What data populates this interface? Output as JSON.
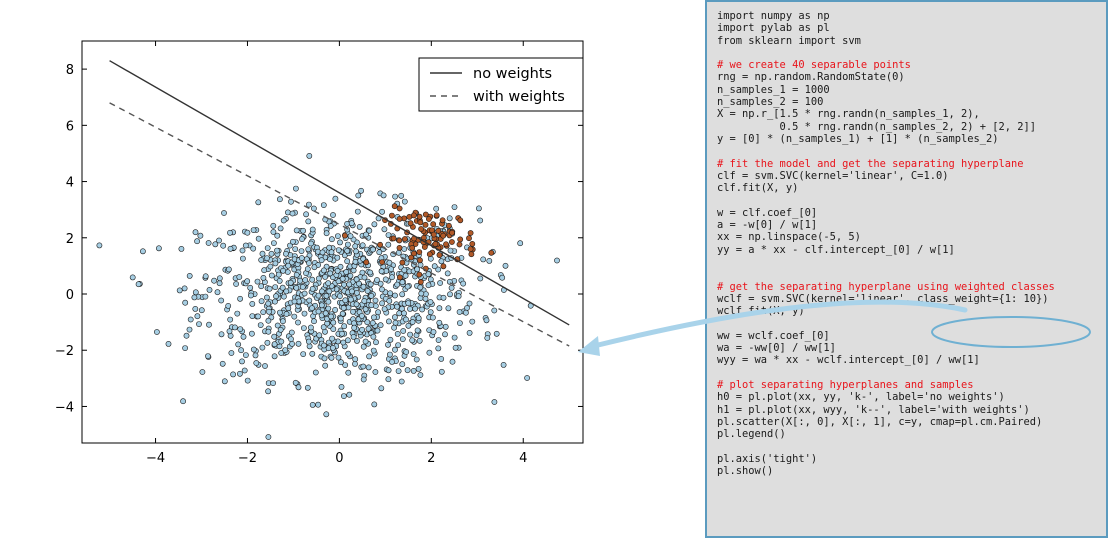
{
  "chart_data": {
    "type": "scatter",
    "xlim": [
      -5.6,
      5.3
    ],
    "ylim": [
      -5.3,
      9.0
    ],
    "xticks": [
      -4,
      -2,
      0,
      2,
      4
    ],
    "yticks": [
      -4,
      -2,
      0,
      2,
      4,
      6,
      8
    ],
    "xtick_labels": [
      "−4",
      "−2",
      "0",
      "2",
      "4"
    ],
    "ytick_labels": [
      "−4",
      "−2",
      "0",
      "2",
      "4",
      "6",
      "8"
    ],
    "grid": false,
    "legend_placement": "top-right",
    "lines": [
      {
        "name": "no weights",
        "style": "solid",
        "color": "#333333",
        "x": [
          -5,
          5
        ],
        "y": [
          8.3,
          -1.1
        ]
      },
      {
        "name": "with weights",
        "style": "dashed",
        "color": "#555555",
        "x": [
          -5,
          5
        ],
        "y": [
          6.8,
          -1.85
        ]
      }
    ],
    "clusters": [
      {
        "class": 0,
        "color": "#a6cee3",
        "n": 1000,
        "center": [
          0.0,
          0.0
        ],
        "spread": 1.5
      },
      {
        "class": 1,
        "color": "#b15928",
        "n": 100,
        "center": [
          2.0,
          2.0
        ],
        "spread": 0.5
      }
    ]
  },
  "code": {
    "lines": [
      {
        "text": "import numpy as np",
        "comment": false
      },
      {
        "text": "import pylab as pl",
        "comment": false
      },
      {
        "text": "from sklearn import svm",
        "comment": false
      },
      {
        "text": "",
        "comment": false
      },
      {
        "text": "# we create 40 separable points",
        "comment": true
      },
      {
        "text": "rng = np.random.RandomState(0)",
        "comment": false
      },
      {
        "text": "n_samples_1 = 1000",
        "comment": false
      },
      {
        "text": "n_samples_2 = 100",
        "comment": false
      },
      {
        "text": "X = np.r_[1.5 * rng.randn(n_samples_1, 2),",
        "comment": false
      },
      {
        "text": "          0.5 * rng.randn(n_samples_2, 2) + [2, 2]]",
        "comment": false
      },
      {
        "text": "y = [0] * (n_samples_1) + [1] * (n_samples_2)",
        "comment": false
      },
      {
        "text": "",
        "comment": false
      },
      {
        "text": "# fit the model and get the separating hyperplane",
        "comment": true
      },
      {
        "text": "clf = svm.SVC(kernel='linear', C=1.0)",
        "comment": false
      },
      {
        "text": "clf.fit(X, y)",
        "comment": false
      },
      {
        "text": "",
        "comment": false
      },
      {
        "text": "w = clf.coef_[0]",
        "comment": false
      },
      {
        "text": "a = -w[0] / w[1]",
        "comment": false
      },
      {
        "text": "xx = np.linspace(-5, 5)",
        "comment": false
      },
      {
        "text": "yy = a * xx - clf.intercept_[0] / w[1]",
        "comment": false
      },
      {
        "text": "",
        "comment": false
      },
      {
        "text": "",
        "comment": false
      },
      {
        "text": "# get the separating hyperplane using weighted classes",
        "comment": true
      },
      {
        "text": "wclf = svm.SVC(kernel='linear', class_weight={1: 10})",
        "comment": false
      },
      {
        "text": "wclf.fit(X, y)",
        "comment": false
      },
      {
        "text": "",
        "comment": false
      },
      {
        "text": "ww = wclf.coef_[0]",
        "comment": false
      },
      {
        "text": "wa = -ww[0] / ww[1]",
        "comment": false
      },
      {
        "text": "wyy = wa * xx - wclf.intercept_[0] / ww[1]",
        "comment": false
      },
      {
        "text": "",
        "comment": false
      },
      {
        "text": "# plot separating hyperplanes and samples",
        "comment": true
      },
      {
        "text": "h0 = pl.plot(xx, yy, 'k-', label='no weights')",
        "comment": false
      },
      {
        "text": "h1 = pl.plot(xx, wyy, 'k--', label='with weights')",
        "comment": false
      },
      {
        "text": "pl.scatter(X[:, 0], X[:, 1], c=y, cmap=pl.cm.Paired)",
        "comment": false
      },
      {
        "text": "pl.legend()",
        "comment": false
      },
      {
        "text": "",
        "comment": false
      },
      {
        "text": "pl.axis('tight')",
        "comment": false
      },
      {
        "text": "pl.show()",
        "comment": false
      }
    ]
  },
  "callout": {
    "color": "#6fb0d2",
    "highlighted_code": "class_weight={1: 10}"
  }
}
